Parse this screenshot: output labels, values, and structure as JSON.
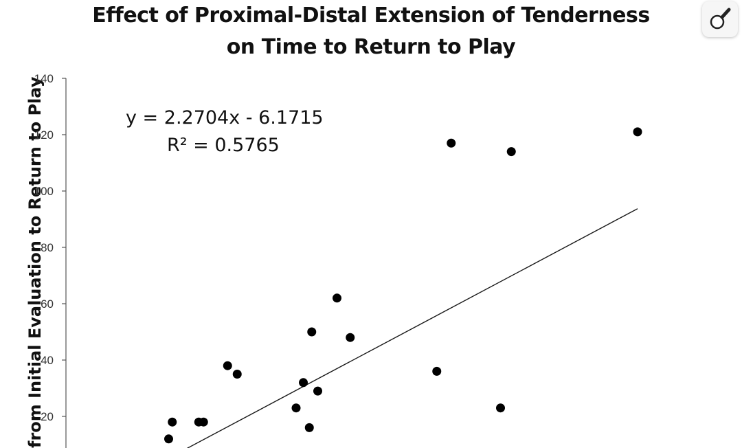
{
  "chart_data": {
    "type": "scatter",
    "title_line1": "Effect of Proximal-Distal Extension of Tenderness",
    "title_line2": "on Time to Return to Play",
    "ylabel": "from Initial Evaluation to Return to Play",
    "ylim": [
      0,
      140
    ],
    "xlim": [
      0,
      50
    ],
    "yticks": [
      20,
      40,
      60,
      80,
      100,
      120,
      140
    ],
    "ytick_labels": [
      "20",
      "40",
      "60",
      "80",
      "100",
      "120",
      "140"
    ],
    "points": [
      {
        "x": 5.0,
        "y": 12
      },
      {
        "x": 5.3,
        "y": 18
      },
      {
        "x": 7.5,
        "y": 18
      },
      {
        "x": 7.9,
        "y": 18
      },
      {
        "x": 9.9,
        "y": 38
      },
      {
        "x": 10.7,
        "y": 35
      },
      {
        "x": 15.6,
        "y": 23
      },
      {
        "x": 16.2,
        "y": 32
      },
      {
        "x": 16.7,
        "y": 16
      },
      {
        "x": 16.9,
        "y": 50
      },
      {
        "x": 17.4,
        "y": 29
      },
      {
        "x": 19.0,
        "y": 62
      },
      {
        "x": 20.1,
        "y": 48
      },
      {
        "x": 27.3,
        "y": 36
      },
      {
        "x": 28.5,
        "y": 117
      },
      {
        "x": 32.6,
        "y": 23
      },
      {
        "x": 33.5,
        "y": 114
      },
      {
        "x": 44.0,
        "y": 121
      }
    ],
    "trendline": {
      "slope": 2.2704,
      "intercept": -6.1715,
      "x_start": 5.0,
      "x_end": 44.0
    },
    "equation": "y = 2.2704x - 6.1715",
    "r_squared": "R² = 0.5765",
    "grid": false,
    "marker_color": "#000000",
    "line_color": "#1a1a1a"
  },
  "toolbar": {
    "zoom_icon": "magnifier-icon"
  }
}
